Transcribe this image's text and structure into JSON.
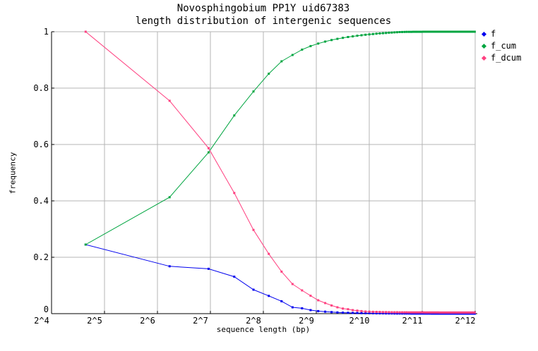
{
  "chart_data": {
    "type": "line",
    "title": "Novosphingobium PP1Y uid67383",
    "subtitle": "length distribution of intergenic sequences",
    "xlabel": "sequence length (bp)",
    "ylabel": "frequency",
    "x_scale": "log2",
    "grid": true,
    "legend_position": "outside-top-right",
    "ylim": [
      0,
      1
    ],
    "x_tick_labels": [
      "2^4",
      "2^5",
      "2^6",
      "2^7",
      "2^8",
      "2^9",
      "2^10",
      "2^11",
      "2^12"
    ],
    "x_tick_exponents": [
      4,
      5,
      6,
      7,
      8,
      9,
      10,
      11,
      12
    ],
    "y_tick_labels": [
      "0",
      "0.2",
      "0.4",
      "0.6",
      "0.8",
      "1"
    ],
    "y_tick_values": [
      0,
      0.2,
      0.4,
      0.6,
      0.8,
      1
    ],
    "colors": {
      "grid": "#b4b4b4",
      "axis": "#000000",
      "background": "#ffffff",
      "f": "#0000ee",
      "f_cum": "#00a540",
      "f_dcum": "#ff4080"
    },
    "x_bp": [
      25,
      75,
      125,
      175,
      225,
      275,
      325,
      375,
      425,
      475,
      525,
      575,
      625,
      675,
      725,
      775,
      825,
      875,
      925,
      975,
      1025,
      1075,
      1125,
      1175,
      1225,
      1275,
      1325,
      1375,
      1425,
      1475,
      1525,
      1575,
      1625,
      1675,
      1725,
      1775,
      1825,
      1875,
      1925,
      1975,
      2025,
      2075,
      2125,
      2175,
      2225,
      2275,
      2325,
      2375,
      2425,
      2475,
      2525,
      2575,
      2625,
      2675,
      2725,
      2775,
      2825,
      2875,
      2925,
      2975,
      3025,
      3075,
      3125,
      3175,
      3225,
      3275,
      3325,
      3375,
      3425,
      3475,
      3525,
      3575,
      3625,
      3675,
      3725,
      3775,
      3825,
      3875,
      3925,
      3975,
      4025,
      4075
    ],
    "series": [
      {
        "name": "f",
        "color": "#0000ee",
        "values": [
          0.245,
          0.168,
          0.159,
          0.131,
          0.085,
          0.063,
          0.044,
          0.0225,
          0.019,
          0.0125,
          0.009,
          0.007,
          0.0055,
          0.0042,
          0.0035,
          0.003,
          0.0024,
          0.0022,
          0.0018,
          0.0016,
          0.0014,
          0.0012,
          0.0011,
          0.001,
          0.0009,
          0.0008,
          0.0008,
          0.0007,
          0.0006,
          0.0006,
          0.0005,
          0.0005,
          0.0004,
          0.0004,
          0.0004,
          0.0003,
          0.0003,
          0.0003,
          0.0003,
          0.0002,
          0.0002,
          0.0002,
          0.0002,
          0.0002,
          0.0002,
          0.0002,
          0.0001,
          0.0001,
          0.0001,
          0.0001,
          0.0001,
          0.0001,
          0.0001,
          0.0001,
          0.0001,
          0.0001,
          0.0001,
          0.0001,
          0.0001,
          0.0001,
          0.0001,
          0.0001,
          0.0001,
          0.0001,
          0.0001,
          0.0001,
          0.0001,
          0.0001,
          0.0001,
          0.0001,
          0.0001,
          0.0001,
          0.0001,
          0.0001,
          0.0001,
          0.0001,
          0.0001,
          0.0001,
          0.0001,
          0.0001,
          0.0001,
          0.0001
        ]
      },
      {
        "name": "f_cum",
        "color": "#00a540",
        "values": [
          0.245,
          0.413,
          0.572,
          0.703,
          0.788,
          0.851,
          0.895,
          0.9175,
          0.9365,
          0.949,
          0.958,
          0.965,
          0.9705,
          0.9747,
          0.9782,
          0.9812,
          0.9836,
          0.9858,
          0.9876,
          0.9892,
          0.9906,
          0.9918,
          0.9929,
          0.9939,
          0.9948,
          0.9956,
          0.9964,
          0.9971,
          0.9977,
          0.9983,
          0.9988,
          0.999,
          0.9992,
          0.9994,
          0.9995,
          0.9996,
          0.9997,
          0.9997,
          0.9998,
          0.9998,
          0.9998,
          0.9999,
          0.9999,
          0.9999,
          0.9999,
          0.9999,
          0.9999,
          0.9999,
          0.9999,
          0.9999,
          1,
          1,
          1,
          1,
          1,
          1,
          1,
          1,
          1,
          1,
          1,
          1,
          1,
          1,
          1,
          1,
          1,
          1,
          1,
          1,
          1,
          1,
          1,
          1,
          1,
          1,
          1,
          1,
          1,
          1,
          1,
          1
        ]
      },
      {
        "name": "f_dcum",
        "color": "#ff4080",
        "values": [
          1,
          0.755,
          0.587,
          0.428,
          0.297,
          0.212,
          0.149,
          0.105,
          0.0825,
          0.0635,
          0.0475,
          0.0375,
          0.029,
          0.0225,
          0.018,
          0.0158,
          0.0125,
          0.0108,
          0.009,
          0.0075,
          0.007,
          0.0066,
          0.0062,
          0.0059,
          0.0056,
          0.0054,
          0.0052,
          0.0051,
          0.005,
          0.0049,
          0.0048,
          0.0048,
          0.0047,
          0.0047,
          0.0046,
          0.0046,
          0.0045,
          0.0045,
          0.0045,
          0.0044,
          0.0044,
          0.0044,
          0.0043,
          0.0043,
          0.0043,
          0.0043,
          0.0042,
          0.0042,
          0.0042,
          0.0042,
          0.0042,
          0.0041,
          0.0041,
          0.0041,
          0.0041,
          0.0041,
          0.0041,
          0.004,
          0.004,
          0.004,
          0.004,
          0.004,
          0.004,
          0.004,
          0.004,
          0.004,
          0.004,
          0.004,
          0.004,
          0.004,
          0.004,
          0.004,
          0.004,
          0.004,
          0.004,
          0.004,
          0.004,
          0.004,
          0.004,
          0.004,
          0.004,
          0.004
        ]
      }
    ]
  }
}
